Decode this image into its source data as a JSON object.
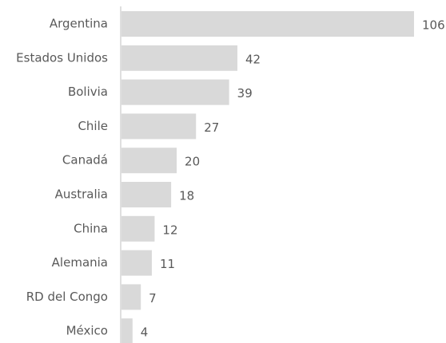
{
  "chart_data": {
    "type": "bar",
    "orientation": "horizontal",
    "categories": [
      "Argentina",
      "Estados Unidos",
      "Bolivia",
      "Chile",
      "Canadá",
      "Australia",
      "China",
      "Alemania",
      "RD del Congo",
      "México"
    ],
    "values": [
      106,
      42,
      39,
      27,
      20,
      18,
      12,
      11,
      7,
      4
    ],
    "color": "#d9d9d9"
  }
}
